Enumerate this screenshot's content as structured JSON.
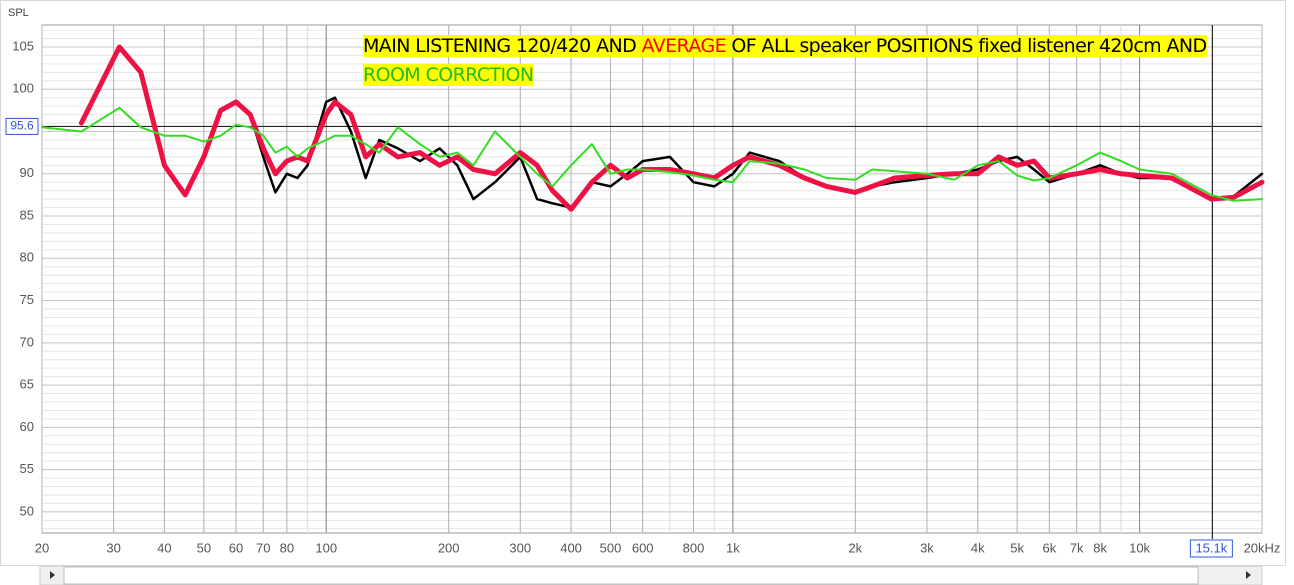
{
  "chart_data": {
    "type": "line",
    "y_label": "SPL",
    "annotation": [
      {
        "text": "MAIN LISTENING 120/420 AND ",
        "color": "#000000"
      },
      {
        "text": "AVERAGE",
        "color": "#ff0000"
      },
      {
        "text": " OF ALL speaker POSITIONS fixed listener 420cm AND ",
        "color": "#000000"
      },
      {
        "text": "ROOM CORRCTION",
        "color": "#22bb22"
      }
    ],
    "log_x": true,
    "grid": true,
    "xlim": [
      20,
      20000
    ],
    "ylim": [
      47.5,
      107.6
    ],
    "xticks": [
      20,
      30,
      40,
      50,
      60,
      70,
      80,
      100,
      200,
      300,
      400,
      500,
      600,
      800,
      {
        "value": 1000,
        "label": "1k"
      },
      {
        "value": 2000,
        "label": "2k"
      },
      {
        "value": 3000,
        "label": "3k"
      },
      {
        "value": 4000,
        "label": "4k"
      },
      {
        "value": 5000,
        "label": "5k"
      },
      {
        "value": 6000,
        "label": "6k"
      },
      {
        "value": 7000,
        "label": "7k"
      },
      {
        "value": 8000,
        "label": "8k"
      },
      {
        "value": 10000,
        "label": "10k"
      },
      {
        "value": 20000,
        "label": "20kHz"
      }
    ],
    "yticks": [
      50,
      55,
      60,
      65,
      70,
      75,
      80,
      85,
      90,
      95,
      100,
      105
    ],
    "cursor_y": 95.6,
    "cursor_x": {
      "value": 15100,
      "label": "15.1k"
    },
    "x": [
      20,
      25,
      31,
      35,
      40,
      45,
      50,
      55,
      60,
      65,
      70,
      75,
      80,
      85,
      90,
      100,
      105,
      115,
      125,
      135,
      150,
      170,
      190,
      210,
      230,
      260,
      300,
      330,
      360,
      400,
      450,
      500,
      550,
      600,
      700,
      800,
      900,
      1000,
      1100,
      1300,
      1500,
      1700,
      2000,
      2200,
      2500,
      3000,
      3500,
      4000,
      4500,
      5000,
      5500,
      6000,
      7000,
      8000,
      9000,
      10000,
      12000,
      15000,
      17000,
      20000
    ],
    "series": [
      {
        "color": "#000000",
        "width": 2.5,
        "values": [
          null,
          96,
          105,
          102,
          91,
          87.5,
          92,
          97.5,
          98.5,
          97,
          92,
          87.8,
          90,
          89.5,
          91,
          98.5,
          99,
          95,
          89.5,
          94,
          93,
          91.5,
          93,
          91,
          87,
          89,
          92,
          87,
          86.5,
          86,
          89,
          88.5,
          90,
          91.5,
          92,
          89,
          88.5,
          90,
          92.5,
          91.5,
          89.5,
          88.5,
          87.8,
          88.5,
          89,
          89.5,
          90,
          90.5,
          91.5,
          92,
          90.5,
          89,
          90,
          91,
          90,
          89.5,
          89.5,
          87,
          87.3,
          90
        ]
      },
      {
        "color": "#ee1144",
        "width": 5,
        "values": [
          null,
          96,
          105,
          102,
          91,
          87.5,
          92,
          97.5,
          98.5,
          97,
          93,
          90,
          91.5,
          92,
          91.5,
          97,
          98.5,
          97,
          92,
          93.5,
          92,
          92.5,
          91,
          92,
          90.5,
          90,
          92.5,
          91,
          88,
          85.8,
          89,
          91,
          89.5,
          90.5,
          90.5,
          90,
          89.5,
          91,
          92,
          91,
          89.5,
          88.5,
          87.8,
          88.5,
          89.5,
          89.8,
          90,
          90,
          92,
          91,
          91.5,
          89.5,
          90,
          90.5,
          90,
          89.8,
          89.5,
          87,
          87.2,
          89
        ]
      },
      {
        "color": "#33dd22",
        "width": 2,
        "values": [
          95.5,
          95,
          97.8,
          95.5,
          94.5,
          94.5,
          93.8,
          94.5,
          95.8,
          95.5,
          94.5,
          92.5,
          93.2,
          92,
          93,
          94,
          94.5,
          94.5,
          93.5,
          92.5,
          95.5,
          93.5,
          92,
          92.5,
          91,
          95,
          92,
          90,
          88.5,
          91,
          93.5,
          90,
          90.5,
          90.5,
          90.2,
          89.8,
          89.3,
          89,
          91.5,
          91.2,
          90.5,
          89.5,
          89.3,
          90.5,
          90.3,
          90,
          89.3,
          91,
          91.5,
          89.8,
          89.2,
          89.5,
          91,
          92.5,
          91.5,
          90.5,
          90,
          87.5,
          86.8,
          87
        ]
      }
    ]
  }
}
